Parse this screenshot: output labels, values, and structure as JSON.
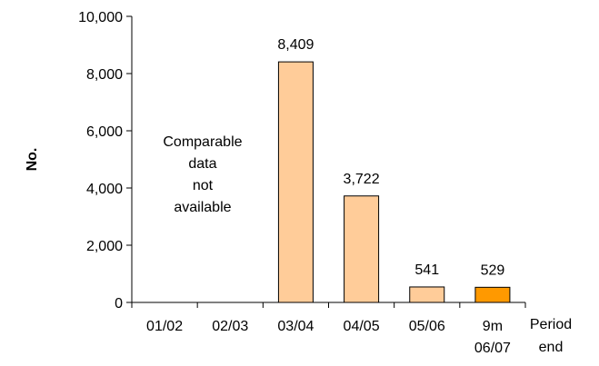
{
  "chart_data": {
    "type": "bar",
    "title": "",
    "ylabel": "No.",
    "xlabel": [
      "Period",
      "end"
    ],
    "ylim": [
      0,
      10000
    ],
    "yticks": [
      0,
      2000,
      4000,
      6000,
      8000,
      10000
    ],
    "ytick_labels": [
      "0",
      "2,000",
      "4,000",
      "6,000",
      "8,000",
      "10,000"
    ],
    "categories": [
      [
        "01/02"
      ],
      [
        "02/03"
      ],
      [
        "03/04"
      ],
      [
        "04/05"
      ],
      [
        "05/06"
      ],
      [
        "9m",
        "06/07"
      ]
    ],
    "values": [
      null,
      null,
      8409,
      3722,
      541,
      529
    ],
    "data_labels": [
      "",
      "",
      "8,409",
      "3,722",
      "541",
      "529"
    ],
    "bar_colors": [
      "#FFCC99",
      "#FFCC99",
      "#FFCC99",
      "#FFCC99",
      "#FFCC99",
      "#FF9900"
    ],
    "annotation": [
      "Comparable",
      "data",
      "not",
      "available"
    ],
    "grid": false,
    "legend": "none"
  }
}
